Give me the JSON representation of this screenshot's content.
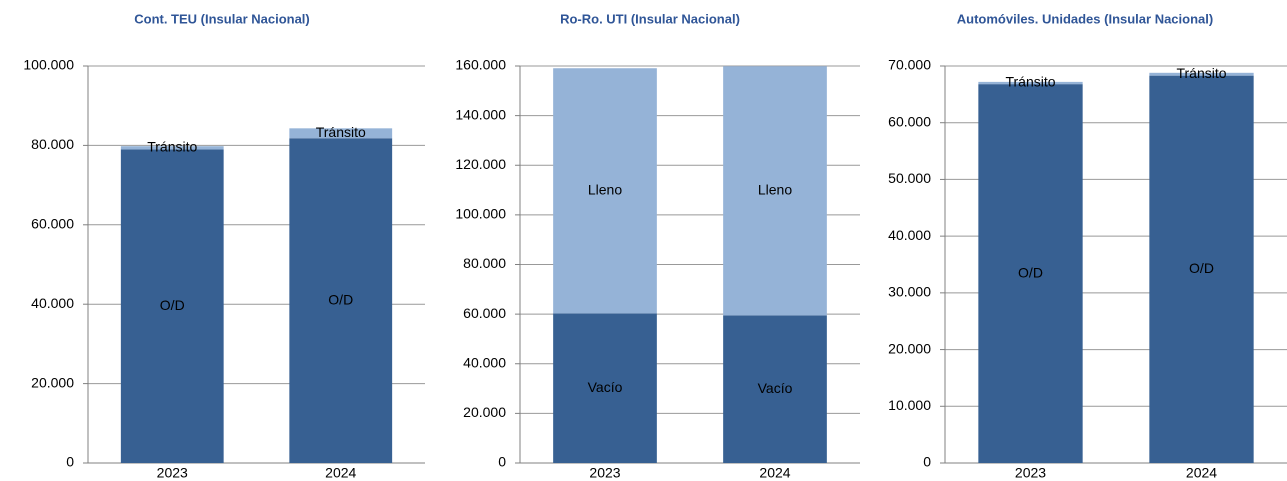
{
  "chart_data": [
    {
      "type": "stacked_bar",
      "title": "Cont. TEU (Insular Nacional)",
      "categories": [
        "2023",
        "2024"
      ],
      "series": [
        {
          "name": "O/D",
          "color": "#376092",
          "values": [
            79000,
            81800
          ]
        },
        {
          "name": "Tránsito",
          "color": "#95b3d7",
          "values": [
            800,
            2500
          ]
        }
      ],
      "ylim": [
        0,
        100000
      ],
      "yticks": [
        0,
        {
          "value": 20000,
          "label": "20.000"
        },
        {
          "value": 40000,
          "label": "40.000"
        },
        {
          "value": 60000,
          "label": "60.000"
        },
        {
          "value": 80000,
          "label": "80.000"
        },
        {
          "value": 100000,
          "label": "100.000"
        }
      ],
      "grid": true
    },
    {
      "type": "stacked_bar",
      "title": "Ro-Ro. UTI (Insular Nacional)",
      "categories": [
        "2023",
        "2024"
      ],
      "series": [
        {
          "name": "Vacío",
          "color": "#376092",
          "values": [
            60300,
            59500
          ]
        },
        {
          "name": "Lleno",
          "color": "#95b3d7",
          "values": [
            98800,
            100400
          ]
        }
      ],
      "ylim": [
        0,
        160000
      ],
      "yticks": [
        0,
        {
          "value": 20000,
          "label": "20.000"
        },
        {
          "value": 40000,
          "label": "40.000"
        },
        {
          "value": 60000,
          "label": "60.000"
        },
        {
          "value": 80000,
          "label": "80.000"
        },
        {
          "value": 100000,
          "label": "100.000"
        },
        {
          "value": 120000,
          "label": "120.000"
        },
        {
          "value": 140000,
          "label": "140.000"
        },
        {
          "value": 160000,
          "label": "160.000"
        }
      ],
      "grid": true
    },
    {
      "type": "stacked_bar",
      "title": "Automóviles. Unidades (Insular Nacional)",
      "categories": [
        "2023",
        "2024"
      ],
      "series": [
        {
          "name": "O/D",
          "color": "#376092",
          "values": [
            66800,
            68300
          ]
        },
        {
          "name": "Tránsito",
          "color": "#95b3d7",
          "values": [
            400,
            500
          ]
        }
      ],
      "ylim": [
        0,
        70000
      ],
      "yticks": [
        0,
        {
          "value": 10000,
          "label": "10.000"
        },
        {
          "value": 20000,
          "label": "20.000"
        },
        {
          "value": 30000,
          "label": "30.000"
        },
        {
          "value": 40000,
          "label": "40.000"
        },
        {
          "value": 50000,
          "label": "50.000"
        },
        {
          "value": 60000,
          "label": "60.000"
        },
        {
          "value": 70000,
          "label": "70.000"
        }
      ],
      "grid": true
    }
  ]
}
